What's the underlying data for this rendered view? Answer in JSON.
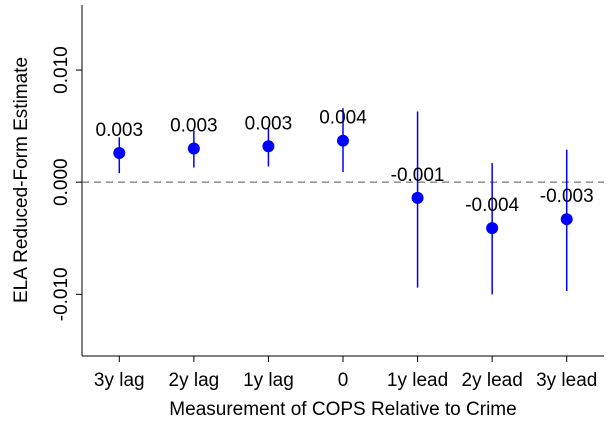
{
  "chart_data": {
    "type": "errorbar",
    "x_label": "Measurement of COPS Relative to Crime",
    "y_label": "ELA Reduced-Form Estimate",
    "categories": [
      "3y lag",
      "2y lag",
      "1y lag",
      "0",
      "1y lead",
      "2y lead",
      "3y lead"
    ],
    "values": [
      0.0026,
      0.003,
      0.0032,
      0.0037,
      -0.0014,
      -0.0041,
      -0.0033
    ],
    "value_labels": [
      "0.003",
      "0.003",
      "0.003",
      "0.004",
      "-0.001",
      "-0.004",
      "-0.003"
    ],
    "ci_low": [
      0.0008,
      0.0013,
      0.0014,
      0.0009,
      -0.0094,
      -0.01,
      -0.0097
    ],
    "ci_high": [
      0.004,
      0.0046,
      0.0048,
      0.0066,
      0.0063,
      0.0017,
      0.0029
    ],
    "color": "#0000ff",
    "ylim": [
      -0.0155,
      0.0158
    ],
    "yticks": [
      {
        "value": -0.01,
        "label": "-0.010"
      },
      {
        "value": 0,
        "label": "0.000"
      },
      {
        "value": 0.01,
        "label": "0.010"
      }
    ],
    "reference_line": 0
  }
}
